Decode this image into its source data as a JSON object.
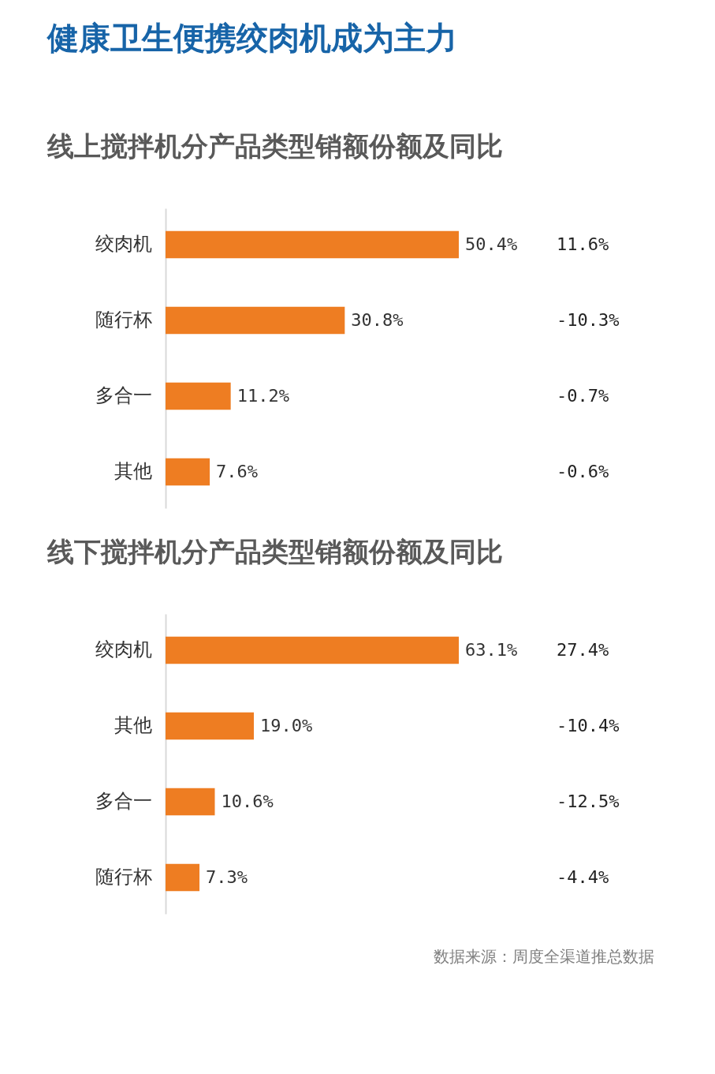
{
  "chart_data": [
    {
      "type": "bar",
      "orientation": "horizontal",
      "title": "健康卫生便携绞肉机成为主力",
      "subtitle": "线上搅拌机分产品类型销额份额及同比",
      "categories": [
        "绞肉机",
        "随行杯",
        "多合一",
        "其他"
      ],
      "series": [
        {
          "color": "#ee7d22",
          "values": [
            50.4,
            30.8,
            11.2,
            7.6
          ],
          "value_labels": [
            "50.4%",
            "30.8%",
            "11.2%",
            "7.6%"
          ]
        }
      ],
      "annotations": [
        "11.6%",
        "-10.3%",
        "-0.7%",
        "-0.6%"
      ],
      "grid": false
    },
    {
      "type": "bar",
      "orientation": "horizontal",
      "title": "线下搅拌机分产品类型销额份额及同比",
      "categories": [
        "绞肉机",
        "其他",
        "多合一",
        "随行杯"
      ],
      "series": [
        {
          "color": "#ee7d22",
          "values": [
            63.1,
            19.0,
            10.6,
            7.3
          ],
          "value_labels": [
            "63.1%",
            "19.0%",
            "10.6%",
            "7.3%"
          ]
        }
      ],
      "annotations": [
        "27.4%",
        "-10.4%",
        "-12.5%",
        "-4.4%",
        "数据来源：周度全渠道推总数据"
      ],
      "grid": false
    }
  ]
}
